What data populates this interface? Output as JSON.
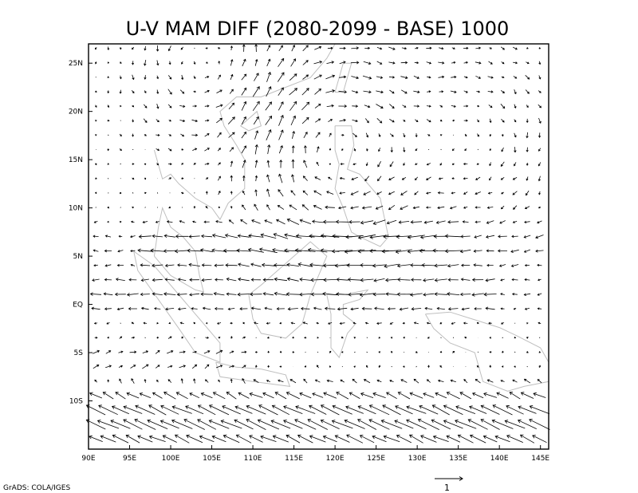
{
  "chart_data": {
    "type": "vector",
    "title": "U-V MAM DIFF (2080-2099 - BASE) 1000",
    "xlabel": "",
    "ylabel": "",
    "xlim": [
      90,
      146
    ],
    "ylim": [
      -15,
      27
    ],
    "x_ticks": [
      "90E",
      "95E",
      "100E",
      "105E",
      "110E",
      "115E",
      "120E",
      "125E",
      "130E",
      "135E",
      "140E",
      "145E"
    ],
    "x_tick_values": [
      90,
      95,
      100,
      105,
      110,
      115,
      120,
      125,
      130,
      135,
      140,
      145
    ],
    "y_ticks": [
      "10S",
      "5S",
      "EQ",
      "5N",
      "10N",
      "15N",
      "20N",
      "25N"
    ],
    "y_tick_values": [
      -10,
      -5,
      0,
      5,
      10,
      15,
      20,
      25
    ],
    "grid": false,
    "field": {
      "description": "Low-level (1000 hPa) wind difference vectors",
      "x_step_deg": 1.5,
      "y_step_deg": 1.5,
      "features": [
        {
          "kind": "anticyclone",
          "lon": 120,
          "lat": 16,
          "strength": 1.1,
          "radius": 7
        },
        {
          "kind": "cyclone",
          "lon": 105,
          "lat": 25,
          "strength": 0.7,
          "radius": 6
        },
        {
          "kind": "anticyclone",
          "lon": 137,
          "lat": 17,
          "strength": 0.6,
          "radius": 7
        },
        {
          "kind": "easterly-jet",
          "lat": 6,
          "speed": 1.2,
          "lon_range": [
            96,
            135
          ]
        },
        {
          "kind": "easterly-band",
          "lat": 1,
          "speed": 0.9,
          "lon_range": [
            90,
            140
          ]
        },
        {
          "kind": "southeasterly",
          "lat": -12,
          "speed": 1.8,
          "lon_range": [
            95,
            146
          ]
        },
        {
          "kind": "westerly-return",
          "lat": -6,
          "speed": 0.6,
          "lon_range": [
            90,
            110
          ]
        }
      ]
    },
    "reference_vector": {
      "label": "1",
      "magnitude": 1
    }
  },
  "credit": "GrADS: COLA/IGES",
  "colors": {
    "axes": "#000000",
    "vectors": "#000000",
    "coast": "#bfbfbf",
    "background": "#ffffff"
  }
}
